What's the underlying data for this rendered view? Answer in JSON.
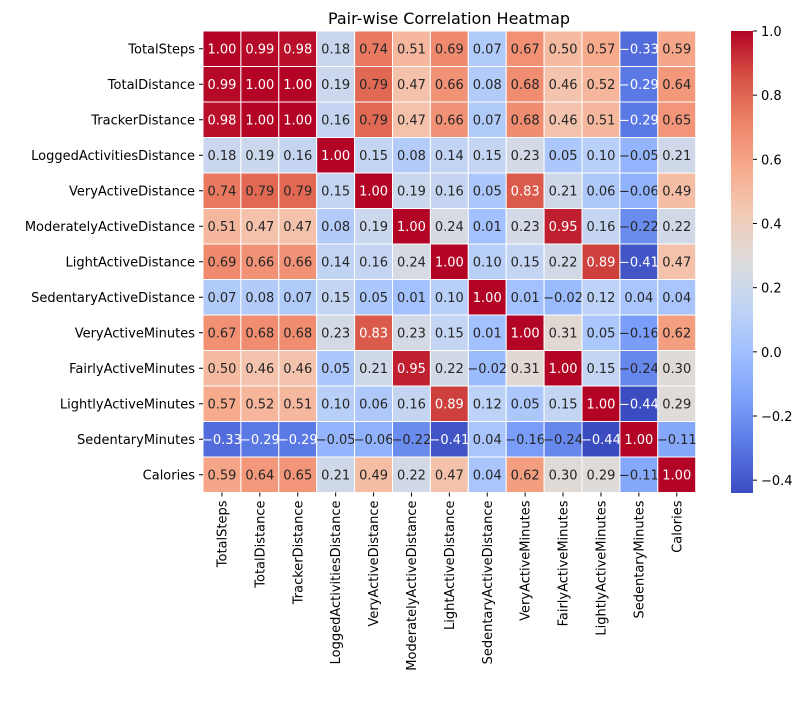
{
  "chart_data": {
    "type": "heatmap",
    "title": "Pair-wise Correlation Heatmap",
    "xlabel": "",
    "ylabel": "",
    "labels": [
      "TotalSteps",
      "TotalDistance",
      "TrackerDistance",
      "LoggedActivitiesDistance",
      "VeryActiveDistance",
      "ModeratelyActiveDistance",
      "LightActiveDistance",
      "SedentaryActiveDistance",
      "VeryActiveMinutes",
      "FairlyActiveMinutes",
      "LightlyActiveMinutes",
      "SedentaryMinutes",
      "Calories"
    ],
    "values": [
      [
        1.0,
        0.99,
        0.98,
        0.18,
        0.74,
        0.51,
        0.69,
        0.07,
        0.67,
        0.5,
        0.57,
        -0.33,
        0.59
      ],
      [
        0.99,
        1.0,
        1.0,
        0.19,
        0.79,
        0.47,
        0.66,
        0.08,
        0.68,
        0.46,
        0.52,
        -0.29,
        0.64
      ],
      [
        0.98,
        1.0,
        1.0,
        0.16,
        0.79,
        0.47,
        0.66,
        0.07,
        0.68,
        0.46,
        0.51,
        -0.29,
        0.65
      ],
      [
        0.18,
        0.19,
        0.16,
        1.0,
        0.15,
        0.08,
        0.14,
        0.15,
        0.23,
        0.05,
        0.1,
        -0.05,
        0.21
      ],
      [
        0.74,
        0.79,
        0.79,
        0.15,
        1.0,
        0.19,
        0.16,
        0.05,
        0.83,
        0.21,
        0.06,
        -0.06,
        0.49
      ],
      [
        0.51,
        0.47,
        0.47,
        0.08,
        0.19,
        1.0,
        0.24,
        0.01,
        0.23,
        0.95,
        0.16,
        -0.22,
        0.22
      ],
      [
        0.69,
        0.66,
        0.66,
        0.14,
        0.16,
        0.24,
        1.0,
        0.1,
        0.15,
        0.22,
        0.89,
        -0.41,
        0.47
      ],
      [
        0.07,
        0.08,
        0.07,
        0.15,
        0.05,
        0.01,
        0.1,
        1.0,
        0.01,
        -0.02,
        0.12,
        0.04,
        0.04
      ],
      [
        0.67,
        0.68,
        0.68,
        0.23,
        0.83,
        0.23,
        0.15,
        0.01,
        1.0,
        0.31,
        0.05,
        -0.16,
        0.62
      ],
      [
        0.5,
        0.46,
        0.46,
        0.05,
        0.21,
        0.95,
        0.22,
        -0.02,
        0.31,
        1.0,
        0.15,
        -0.24,
        0.3
      ],
      [
        0.57,
        0.52,
        0.51,
        0.1,
        0.06,
        0.16,
        0.89,
        0.12,
        0.05,
        0.15,
        1.0,
        -0.44,
        0.29
      ],
      [
        -0.33,
        -0.29,
        -0.29,
        -0.05,
        -0.06,
        -0.22,
        -0.41,
        0.04,
        -0.16,
        -0.24,
        -0.44,
        1.0,
        -0.11
      ],
      [
        0.59,
        0.64,
        0.65,
        0.21,
        0.49,
        0.22,
        0.47,
        0.04,
        0.62,
        0.3,
        0.29,
        -0.11,
        1.0
      ]
    ],
    "colormap": "coolwarm",
    "colorbar": {
      "min": -0.44,
      "max": 1.0,
      "ticks": [
        1.0,
        0.8,
        0.6,
        0.4,
        0.2,
        0.0,
        -0.2,
        -0.4
      ],
      "tick_labels": [
        "1.0",
        "0.8",
        "0.6",
        "0.4",
        "0.2",
        "0.0",
        "−0.2",
        "−0.4"
      ]
    },
    "annotations": true,
    "value_format": "2 decimals",
    "grid": false,
    "cell_separator_color": "#ffffff",
    "colormap_stops": [
      "#3b4cc0",
      "#5977e3",
      "#7b9ff9",
      "#9ebeff",
      "#c0d4f5",
      "#dddcdc",
      "#f2cbb7",
      "#f7ac8e",
      "#ee8468",
      "#d65244",
      "#b40426"
    ]
  }
}
